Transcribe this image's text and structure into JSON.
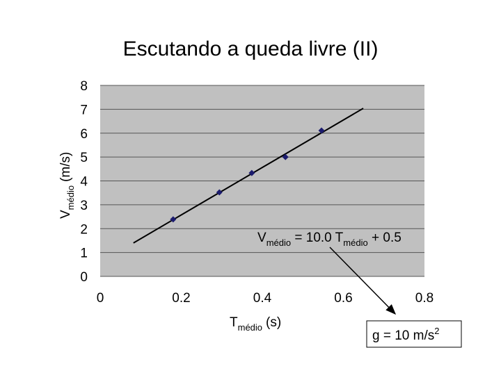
{
  "chart_data": {
    "type": "scatter",
    "title": "Escutando a queda livre (II)",
    "xlabel": {
      "symbol": "T",
      "subscript": "médio",
      "unit": "(s)"
    },
    "ylabel": {
      "symbol": "V",
      "subscript": "médio",
      "unit": "(m/s)"
    },
    "points": {
      "x": [
        0.18,
        0.294,
        0.374,
        0.457,
        0.546
      ],
      "y": [
        2.39,
        3.52,
        4.33,
        5.0,
        6.11
      ],
      "color": "#1c1c6e"
    },
    "fit_line": {
      "x": [
        0.082,
        0.649
      ],
      "y": [
        1.4,
        7.04
      ],
      "color": "#000000"
    },
    "equation": [
      "V",
      "médio",
      " = 10.0 T",
      "médio",
      " + 0.5"
    ],
    "result": [
      "g = 10 m/s",
      "2"
    ],
    "xlim": [
      0,
      0.8
    ],
    "xticks": [
      0,
      0.2,
      0.4,
      0.6,
      0.8
    ],
    "ylim": [
      0,
      8
    ],
    "yticks": [
      0,
      1,
      2,
      3,
      4,
      5,
      6,
      7,
      8
    ],
    "grid": true
  }
}
